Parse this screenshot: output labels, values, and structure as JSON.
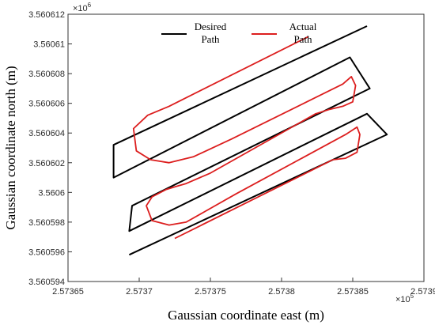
{
  "chart_data": {
    "type": "line",
    "title": "",
    "xlabel": "Gaussian coordinate east (m)",
    "ylabel": "Gaussian coordinate north (m)",
    "xlim": [
      257365,
      257390
    ],
    "ylim": [
      3560594,
      3560612
    ],
    "x_ticks": [
      257365,
      257370,
      257375,
      257380,
      257385,
      257390
    ],
    "x_tick_labels": [
      "2.57365",
      "2.5737",
      "2.57375",
      "2.5738",
      "2.57385",
      "2.5739"
    ],
    "y_ticks": [
      3560594,
      3560596,
      3560598,
      3560600,
      3560602,
      3560604,
      3560606,
      3560608,
      3560610,
      3560612
    ],
    "y_tick_labels": [
      "3.560594",
      "3.560596",
      "3.560598",
      "3.5606",
      "3.560602",
      "3.560604",
      "3.560606",
      "3.560608",
      "3.56061",
      "3.560612"
    ],
    "x_multiplier": "×10",
    "x_exponent": "5",
    "y_multiplier": "×10",
    "y_exponent": "6",
    "grid": false,
    "legend_position": "top",
    "series": [
      {
        "name": "Desired Path",
        "color": "#000000",
        "x": [
          257386.0,
          257368.2,
          257368.2,
          257384.8,
          257386.2,
          257369.5,
          257369.3,
          257386.0,
          257387.4,
          257369.3
        ],
        "y": [
          3560611.2,
          3560603.2,
          3560601.0,
          3560609.1,
          3560607.0,
          3560599.1,
          3560597.4,
          3560605.3,
          3560603.9,
          3560595.8
        ]
      },
      {
        "name": "Actual Path",
        "color": "#dc1e1e",
        "x": [
          257381.9,
          257372.1,
          257370.6,
          257369.6,
          257369.8,
          257370.8,
          257372.1,
          257373.8,
          257376.5,
          257384.3,
          257384.9,
          257385.2,
          257385.0,
          257384.3,
          257383.4,
          257382.4,
          257375.0,
          257373.3,
          257372.6,
          257371.9,
          257370.9,
          257370.5,
          257370.9,
          257372.1,
          257373.3,
          257376.8,
          257384.5,
          257385.3,
          257385.5,
          257385.3,
          257384.5,
          257383.6,
          257372.5
        ],
        "y": [
          3560610.5,
          3560605.8,
          3560605.2,
          3560604.3,
          3560602.8,
          3560602.2,
          3560602.0,
          3560602.4,
          3560603.6,
          3560607.3,
          3560607.8,
          3560607.2,
          3560606.1,
          3560605.8,
          3560605.6,
          3560605.3,
          3560601.3,
          3560600.6,
          3560600.4,
          3560600.2,
          3560599.7,
          3560599.1,
          3560598.1,
          3560597.8,
          3560598.0,
          3560599.9,
          3560603.9,
          3560604.4,
          3560603.9,
          3560602.7,
          3560602.3,
          3560602.2,
          3560596.9
        ]
      }
    ]
  }
}
